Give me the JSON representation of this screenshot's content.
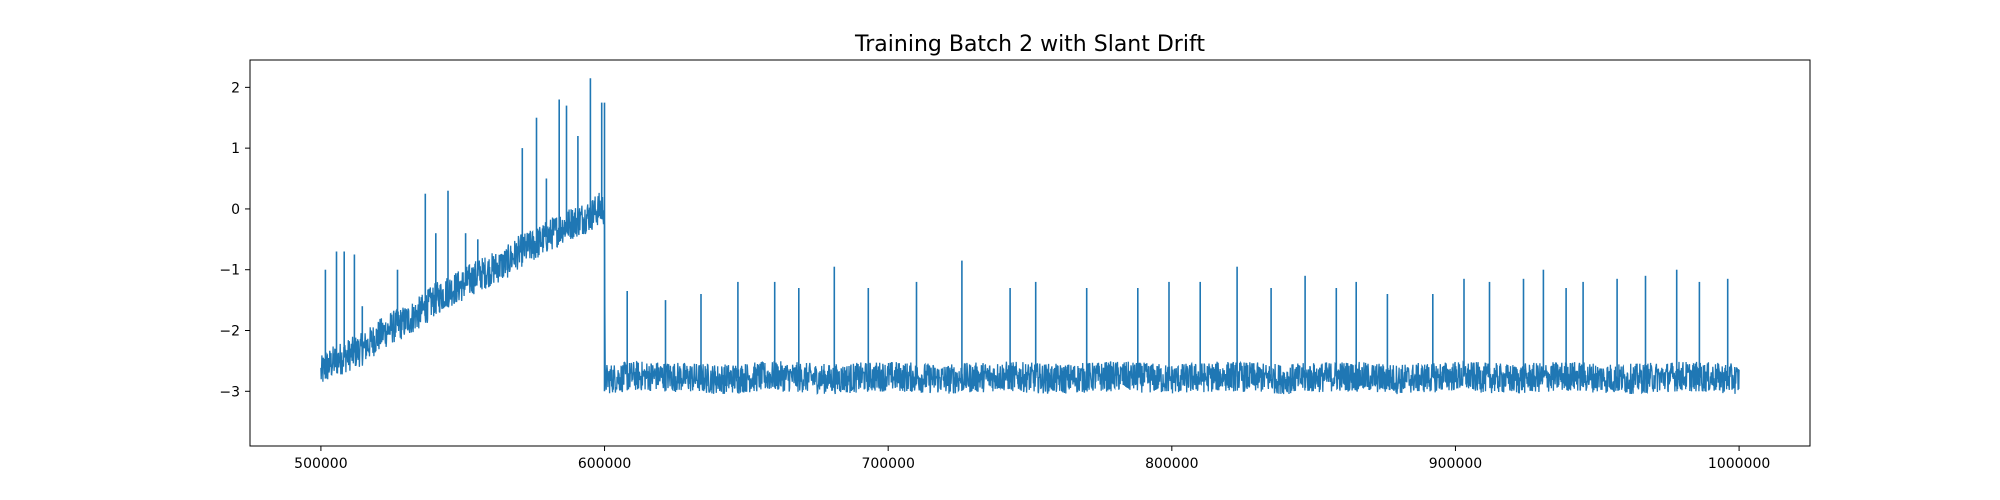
{
  "chart_data": {
    "type": "line",
    "title": "Training Batch 2 with Slant Drift",
    "xlabel": "",
    "ylabel": "",
    "xlim": [
      475000,
      1025000
    ],
    "ylim": [
      -3.9,
      2.45
    ],
    "grid": false,
    "legend": "none",
    "line_color": "#1f77b4",
    "x_ticks": [
      500000,
      600000,
      700000,
      800000,
      900000,
      1000000
    ],
    "y_ticks": [
      -3,
      -2,
      -1,
      0,
      1,
      2
    ],
    "x_tick_labels": [
      "500000",
      "600000",
      "700000",
      "800000",
      "900000",
      "1000000"
    ],
    "y_tick_labels": [
      "−3",
      "−2",
      "−1",
      "0",
      "1",
      "2"
    ],
    "series": [
      {
        "x": [
          500000,
          502000,
          505000,
          510000,
          515000,
          520000,
          525000,
          530000,
          535000,
          540000,
          545000,
          550000,
          555000,
          560000,
          565000,
          570000,
          575000,
          580000,
          585000,
          590000,
          595000,
          598000,
          599900,
          600000,
          600200,
          610000,
          620000,
          640000,
          660000,
          680000,
          700000,
          720000,
          740000,
          760000,
          780000,
          800000,
          820000,
          840000,
          860000,
          880000,
          900000,
          920000,
          940000,
          960000,
          980000,
          1000000
        ],
        "y": [
          -2.7,
          -2.6,
          -2.5,
          -2.4,
          -2.3,
          -2.1,
          -1.95,
          -1.85,
          -1.7,
          -1.5,
          -1.35,
          -1.25,
          -1.1,
          -1.0,
          -0.9,
          -0.7,
          -0.6,
          -0.45,
          -0.3,
          -0.2,
          -0.1,
          0.0,
          0.0,
          -0.5,
          -2.8,
          -2.75,
          -2.75,
          -2.8,
          -2.75,
          -2.8,
          -2.75,
          -2.8,
          -2.75,
          -2.8,
          -2.75,
          -2.8,
          -2.75,
          -2.8,
          -2.75,
          -2.8,
          -2.75,
          -2.8,
          -2.75,
          -2.8,
          -2.75,
          -2.8
        ]
      }
    ],
    "spikes": [
      {
        "x": 501600,
        "y": -1.0
      },
      {
        "x": 505500,
        "y": -0.7
      },
      {
        "x": 508200,
        "y": -0.7
      },
      {
        "x": 511800,
        "y": -0.75
      },
      {
        "x": 514600,
        "y": -1.6
      },
      {
        "x": 527000,
        "y": -1.0
      },
      {
        "x": 536800,
        "y": 0.25
      },
      {
        "x": 540500,
        "y": -0.4
      },
      {
        "x": 544800,
        "y": 0.3
      },
      {
        "x": 551000,
        "y": -0.4
      },
      {
        "x": 555300,
        "y": -0.5
      },
      {
        "x": 571000,
        "y": 1.0
      },
      {
        "x": 576000,
        "y": 1.5
      },
      {
        "x": 579500,
        "y": 0.5
      },
      {
        "x": 584000,
        "y": 1.8
      },
      {
        "x": 586600,
        "y": 1.7
      },
      {
        "x": 590600,
        "y": 1.2
      },
      {
        "x": 595000,
        "y": 2.15
      },
      {
        "x": 599000,
        "y": 1.75
      },
      {
        "x": 608000,
        "y": -1.35
      },
      {
        "x": 621500,
        "y": -1.5
      },
      {
        "x": 634000,
        "y": -1.4
      },
      {
        "x": 647000,
        "y": -1.2
      },
      {
        "x": 660000,
        "y": -1.2
      },
      {
        "x": 668500,
        "y": -1.3
      },
      {
        "x": 681000,
        "y": -0.95
      },
      {
        "x": 693000,
        "y": -1.3
      },
      {
        "x": 710000,
        "y": -1.2
      },
      {
        "x": 726000,
        "y": -0.85
      },
      {
        "x": 743000,
        "y": -1.3
      },
      {
        "x": 752000,
        "y": -1.2
      },
      {
        "x": 770000,
        "y": -1.3
      },
      {
        "x": 788000,
        "y": -1.3
      },
      {
        "x": 799000,
        "y": -1.2
      },
      {
        "x": 810000,
        "y": -1.2
      },
      {
        "x": 823000,
        "y": -0.95
      },
      {
        "x": 835000,
        "y": -1.3
      },
      {
        "x": 847000,
        "y": -1.1
      },
      {
        "x": 858000,
        "y": -1.3
      },
      {
        "x": 865000,
        "y": -1.2
      },
      {
        "x": 876000,
        "y": -1.4
      },
      {
        "x": 892000,
        "y": -1.4
      },
      {
        "x": 903000,
        "y": -1.15
      },
      {
        "x": 912000,
        "y": -1.2
      },
      {
        "x": 924000,
        "y": -1.15
      },
      {
        "x": 931000,
        "y": -1.0
      },
      {
        "x": 939000,
        "y": -1.3
      },
      {
        "x": 945000,
        "y": -1.2
      },
      {
        "x": 957000,
        "y": -1.15
      },
      {
        "x": 967000,
        "y": -1.1
      },
      {
        "x": 978000,
        "y": -1.0
      },
      {
        "x": 986000,
        "y": -1.2
      },
      {
        "x": 996000,
        "y": -1.15
      }
    ]
  }
}
